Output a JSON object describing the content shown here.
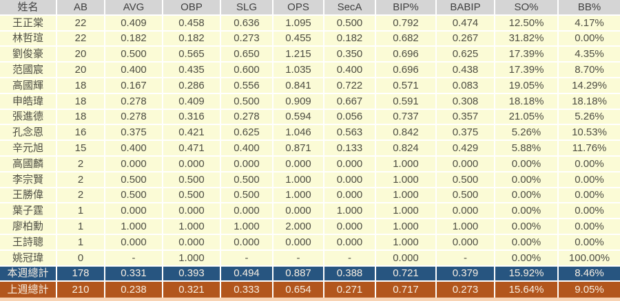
{
  "chart_data": {
    "type": "table",
    "columns": [
      "姓名",
      "AB",
      "AVG",
      "OBP",
      "SLG",
      "OPS",
      "SecA",
      "BIP%",
      "BABIP",
      "SO%",
      "BB%"
    ],
    "rows": [
      [
        "王正棠",
        "22",
        "0.409",
        "0.458",
        "0.636",
        "1.095",
        "0.500",
        "0.792",
        "0.474",
        "12.50%",
        "4.17%"
      ],
      [
        "林哲瑄",
        "22",
        "0.182",
        "0.182",
        "0.273",
        "0.455",
        "0.182",
        "0.682",
        "0.267",
        "31.82%",
        "0.00%"
      ],
      [
        "劉俊豪",
        "20",
        "0.500",
        "0.565",
        "0.650",
        "1.215",
        "0.350",
        "0.696",
        "0.625",
        "17.39%",
        "4.35%"
      ],
      [
        "范國宸",
        "20",
        "0.400",
        "0.435",
        "0.600",
        "1.035",
        "0.400",
        "0.696",
        "0.438",
        "17.39%",
        "8.70%"
      ],
      [
        "高國輝",
        "18",
        "0.167",
        "0.286",
        "0.556",
        "0.841",
        "0.722",
        "0.571",
        "0.083",
        "19.05%",
        "14.29%"
      ],
      [
        "申皓瑋",
        "18",
        "0.278",
        "0.409",
        "0.500",
        "0.909",
        "0.667",
        "0.591",
        "0.308",
        "18.18%",
        "18.18%"
      ],
      [
        "張進德",
        "18",
        "0.278",
        "0.316",
        "0.278",
        "0.594",
        "0.056",
        "0.737",
        "0.357",
        "21.05%",
        "5.26%"
      ],
      [
        "孔念恩",
        "16",
        "0.375",
        "0.421",
        "0.625",
        "1.046",
        "0.563",
        "0.842",
        "0.375",
        "5.26%",
        "10.53%"
      ],
      [
        "辛元旭",
        "15",
        "0.400",
        "0.471",
        "0.400",
        "0.871",
        "0.133",
        "0.824",
        "0.429",
        "5.88%",
        "11.76%"
      ],
      [
        "高國麟",
        "2",
        "0.000",
        "0.000",
        "0.000",
        "0.000",
        "0.000",
        "1.000",
        "0.000",
        "0.00%",
        "0.00%"
      ],
      [
        "李宗賢",
        "2",
        "0.500",
        "0.500",
        "0.500",
        "1.000",
        "0.000",
        "1.000",
        "0.500",
        "0.00%",
        "0.00%"
      ],
      [
        "王勝偉",
        "2",
        "0.500",
        "0.500",
        "0.500",
        "1.000",
        "0.000",
        "1.000",
        "0.500",
        "0.00%",
        "0.00%"
      ],
      [
        "葉子霆",
        "1",
        "0.000",
        "0.000",
        "0.000",
        "0.000",
        "1.000",
        "1.000",
        "0.000",
        "0.00%",
        "0.00%"
      ],
      [
        "廖柏勳",
        "1",
        "1.000",
        "1.000",
        "1.000",
        "2.000",
        "0.000",
        "1.000",
        "1.000",
        "0.00%",
        "0.00%"
      ],
      [
        "王詩聰",
        "1",
        "0.000",
        "0.000",
        "0.000",
        "0.000",
        "0.000",
        "1.000",
        "0.000",
        "0.00%",
        "0.00%"
      ],
      [
        "姚冠瑋",
        "0",
        "-",
        "1.000",
        "-",
        "-",
        "-",
        "0.000",
        "-",
        "0.00%",
        "100.00%"
      ]
    ],
    "totals": [
      {
        "label": "本週總計",
        "values": [
          "178",
          "0.331",
          "0.393",
          "0.494",
          "0.887",
          "0.388",
          "0.721",
          "0.379",
          "15.92%",
          "8.46%"
        ]
      },
      {
        "label": "上週總計",
        "values": [
          "210",
          "0.238",
          "0.321",
          "0.333",
          "0.654",
          "0.271",
          "0.717",
          "0.273",
          "15.64%",
          "9.05%"
        ]
      }
    ],
    "layout_hints": {
      "grid": true,
      "header_position": "top",
      "totals_position": "bottom"
    }
  },
  "colors": {
    "header_bg": "#d5d5d5",
    "header_text": "#404040",
    "row_bg": "#fbfbd6",
    "row_text": "#4d4d42",
    "gridline": "#ffffff",
    "total_week_bg": "#275580",
    "total_prev_bg": "#b2561d",
    "total_text": "#f7eee2",
    "bottom_strip_bg": "#f8d3b4"
  }
}
